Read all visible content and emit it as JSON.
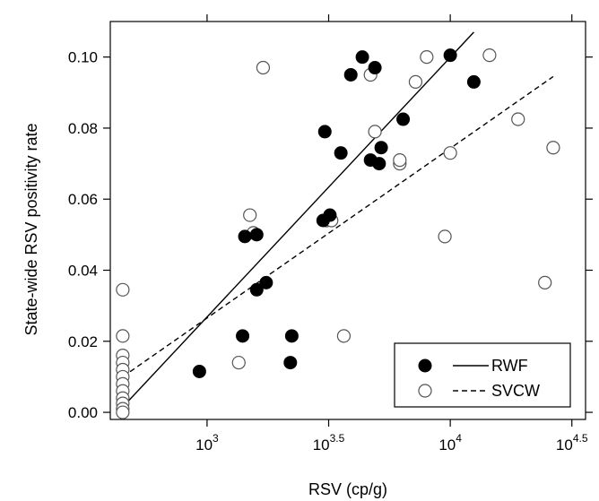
{
  "chart_data": {
    "type": "scatter",
    "title": "",
    "xlabel": "RSV (cp/g)",
    "ylabel": "State-wide RSV positivity rate",
    "x_scale": "log10",
    "xlim": [
      400,
      36000
    ],
    "ylim": [
      -0.002,
      0.11
    ],
    "x_ticks": [
      {
        "value": 1000,
        "base": "10",
        "exp": "3"
      },
      {
        "value": 3162,
        "base": "10",
        "exp": "3.5"
      },
      {
        "value": 10000,
        "base": "10",
        "exp": "4"
      },
      {
        "value": 31623,
        "base": "10",
        "exp": "4.5"
      }
    ],
    "y_ticks": [
      "0.00",
      "0.02",
      "0.04",
      "0.06",
      "0.08",
      "0.10"
    ],
    "legend_position": "bottom-right",
    "series": [
      {
        "name": "RWF",
        "marker": "filled-circle",
        "line": "solid",
        "color": "#000000",
        "points": [
          [
            930,
            0.0115
          ],
          [
            1400,
            0.0215
          ],
          [
            1430,
            0.0495
          ],
          [
            1600,
            0.05
          ],
          [
            1600,
            0.0345
          ],
          [
            1750,
            0.0365
          ],
          [
            2200,
            0.014
          ],
          [
            2230,
            0.0215
          ],
          [
            3000,
            0.054
          ],
          [
            3050,
            0.079
          ],
          [
            3200,
            0.0555
          ],
          [
            3550,
            0.073
          ],
          [
            3900,
            0.095
          ],
          [
            4350,
            0.1
          ],
          [
            4700,
            0.071
          ],
          [
            4900,
            0.097
          ],
          [
            5100,
            0.07
          ],
          [
            5200,
            0.0745
          ],
          [
            6400,
            0.0825
          ],
          [
            10000,
            0.1005
          ],
          [
            12500,
            0.093
          ]
        ],
        "fit": [
          [
            450,
            0.0015
          ],
          [
            12500,
            0.107
          ]
        ]
      },
      {
        "name": "SVCW",
        "marker": "open-circle",
        "line": "dashed",
        "color": "#000000",
        "points": [
          [
            450,
            0.0345
          ],
          [
            450,
            0.0215
          ],
          [
            450,
            0.016
          ],
          [
            450,
            0.014
          ],
          [
            450,
            0.012
          ],
          [
            450,
            0.01
          ],
          [
            450,
            0.008
          ],
          [
            450,
            0.006
          ],
          [
            450,
            0.004
          ],
          [
            450,
            0.0025
          ],
          [
            450,
            0.001
          ],
          [
            450,
            0.0
          ],
          [
            1350,
            0.014
          ],
          [
            1500,
            0.0555
          ],
          [
            1550,
            0.0505
          ],
          [
            1700,
            0.097
          ],
          [
            3100,
            0.054
          ],
          [
            3250,
            0.054
          ],
          [
            3650,
            0.0215
          ],
          [
            4700,
            0.095
          ],
          [
            4900,
            0.079
          ],
          [
            6200,
            0.07
          ],
          [
            6200,
            0.071
          ],
          [
            7200,
            0.093
          ],
          [
            8000,
            0.1
          ],
          [
            9500,
            0.0495
          ],
          [
            10000,
            0.073
          ],
          [
            14500,
            0.1005
          ],
          [
            19000,
            0.0825
          ],
          [
            24500,
            0.0365
          ],
          [
            26500,
            0.0745
          ]
        ],
        "fit": [
          [
            450,
            0.01
          ],
          [
            26500,
            0.0945
          ]
        ]
      }
    ]
  }
}
